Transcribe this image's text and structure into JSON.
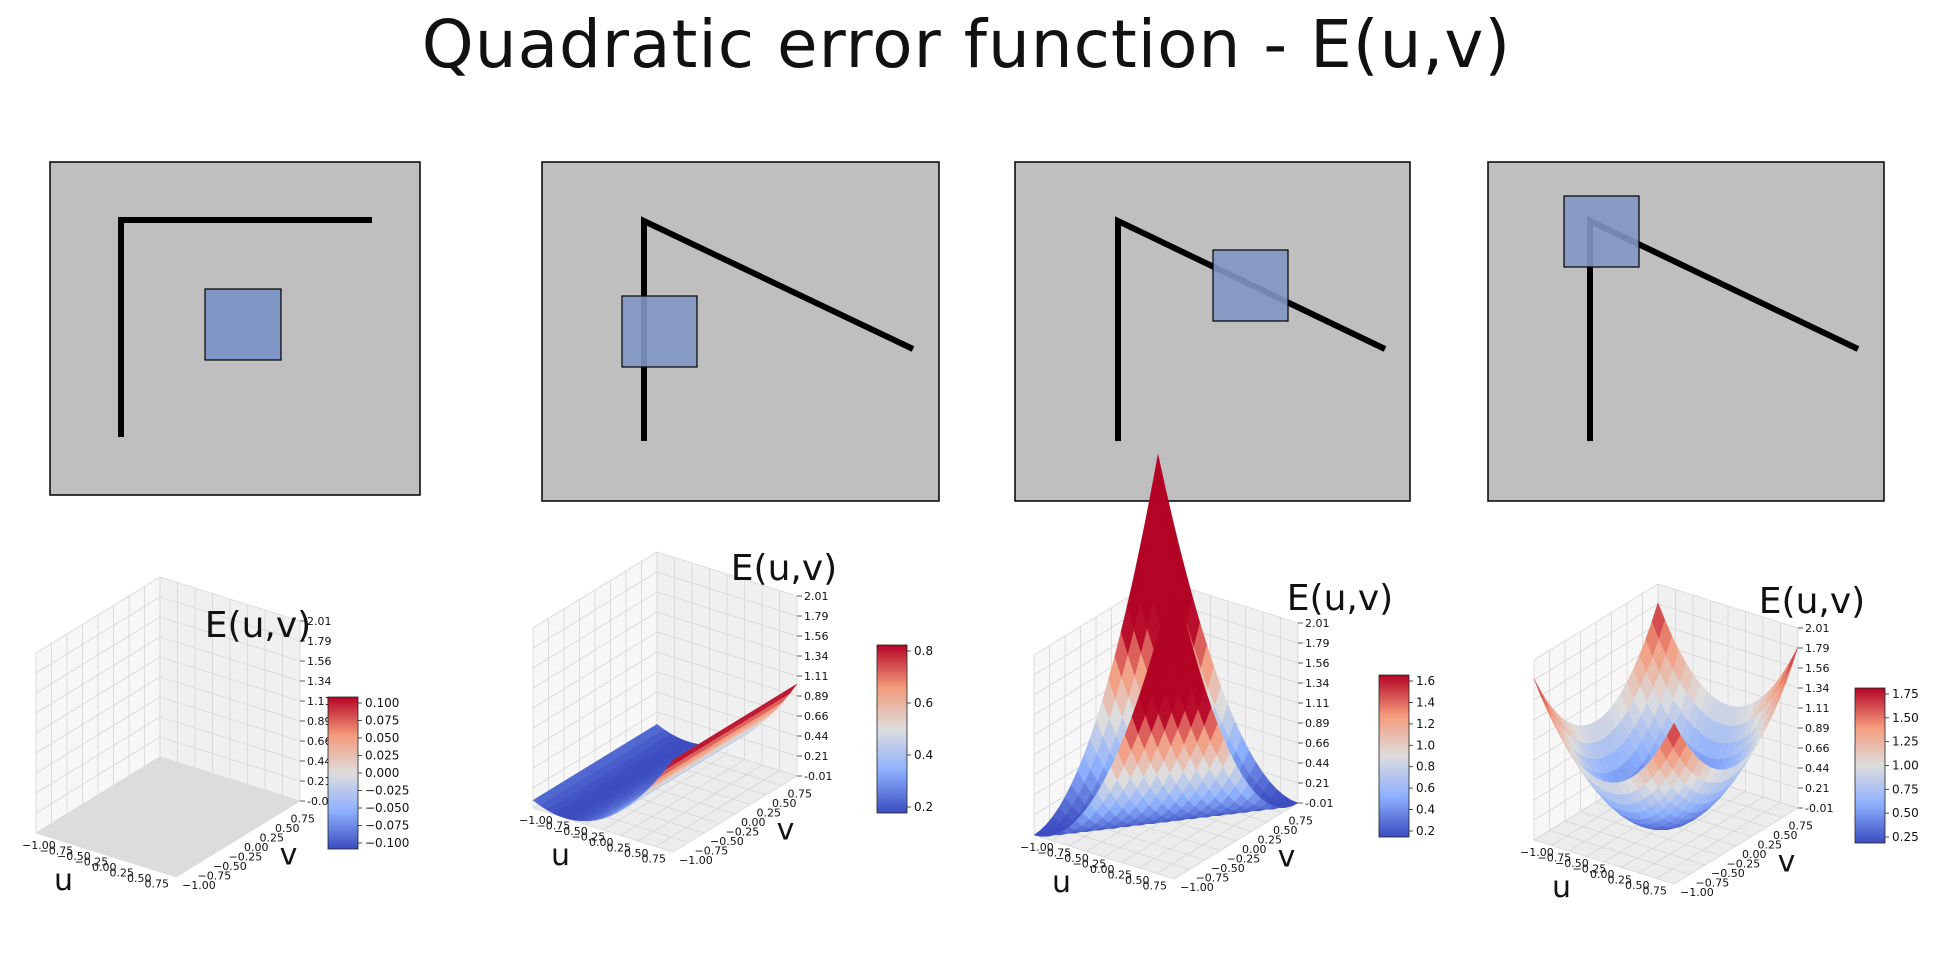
{
  "title": "Quadratic error function - E(u,v)",
  "colors": {
    "canvas": "#bfbfbf",
    "line": "#000000",
    "window": "#8096c4",
    "cmap_low": "#3b4cc0",
    "cmap_mid": "#dddddd",
    "cmap_high": "#b40426",
    "grid": "#d6d6d6"
  },
  "panels": [
    {
      "id": "flat",
      "surface": {
        "title": "E(u,v)",
        "xlabel": "u",
        "ylabel": "v",
        "x_ticks": [
          "−1.00",
          "−0.75",
          "−0.50",
          "−0.25",
          "0.00",
          "0.25",
          "0.50",
          "0.75"
        ],
        "y_ticks": [
          "−1.00",
          "−0.75",
          "−0.50",
          "−0.25",
          "0.00",
          "0.25",
          "0.50",
          "0.75"
        ],
        "z_ticks": [
          "2.01",
          "1.79",
          "1.56",
          "1.34",
          "1.11",
          "0.89",
          "0.66",
          "0.44",
          "0.21",
          "-0.01"
        ]
      },
      "colorbar": {
        "ticks": [
          "0.100",
          "0.075",
          "0.050",
          "0.025",
          "0.000",
          "−0.025",
          "−0.050",
          "−0.075",
          "−0.100"
        ]
      }
    },
    {
      "id": "edge",
      "surface": {
        "title": "E(u,v)",
        "xlabel": "u",
        "ylabel": "v",
        "x_ticks": [
          "−1.00",
          "−0.75",
          "−0.50",
          "−0.25",
          "0.00",
          "0.25",
          "0.50",
          "0.75"
        ],
        "y_ticks": [
          "−1.00",
          "−0.75",
          "−0.50",
          "−0.25",
          "0.00",
          "0.25",
          "0.50",
          "0.75"
        ],
        "z_ticks": [
          "2.01",
          "1.79",
          "1.56",
          "1.34",
          "1.11",
          "0.89",
          "0.66",
          "0.44",
          "0.21",
          "-0.01"
        ]
      },
      "colorbar": {
        "ticks": [
          "0.8",
          "0.6",
          "0.4",
          "0.2"
        ]
      }
    },
    {
      "id": "diagonal-edge",
      "surface": {
        "title": "E(u,v)",
        "xlabel": "u",
        "ylabel": "v",
        "x_ticks": [
          "−1.00",
          "−0.75",
          "−0.50",
          "−0.25",
          "0.00",
          "0.25",
          "0.50",
          "0.75"
        ],
        "y_ticks": [
          "−1.00",
          "−0.75",
          "−0.50",
          "−0.25",
          "0.00",
          "0.25",
          "0.50",
          "0.75"
        ],
        "z_ticks": [
          "2.01",
          "1.79",
          "1.56",
          "1.34",
          "1.11",
          "0.89",
          "0.66",
          "0.44",
          "0.21",
          "-0.01"
        ]
      },
      "colorbar": {
        "ticks": [
          "1.6",
          "1.4",
          "1.2",
          "1.0",
          "0.8",
          "0.6",
          "0.4",
          "0.2"
        ]
      }
    },
    {
      "id": "corner",
      "surface": {
        "title": "E(u,v)",
        "xlabel": "u",
        "ylabel": "v",
        "x_ticks": [
          "−1.00",
          "−0.75",
          "−0.50",
          "−0.25",
          "0.00",
          "0.25",
          "0.50",
          "0.75"
        ],
        "y_ticks": [
          "−1.00",
          "−0.75",
          "−0.50",
          "−0.25",
          "0.00",
          "0.25",
          "0.50",
          "0.75"
        ],
        "z_ticks": [
          "2.01",
          "1.79",
          "1.56",
          "1.34",
          "1.11",
          "0.89",
          "0.66",
          "0.44",
          "0.21",
          "-0.01"
        ]
      },
      "colorbar": {
        "ticks": [
          "1.75",
          "1.50",
          "1.25",
          "1.00",
          "0.75",
          "0.50",
          "0.25"
        ]
      }
    }
  ]
}
